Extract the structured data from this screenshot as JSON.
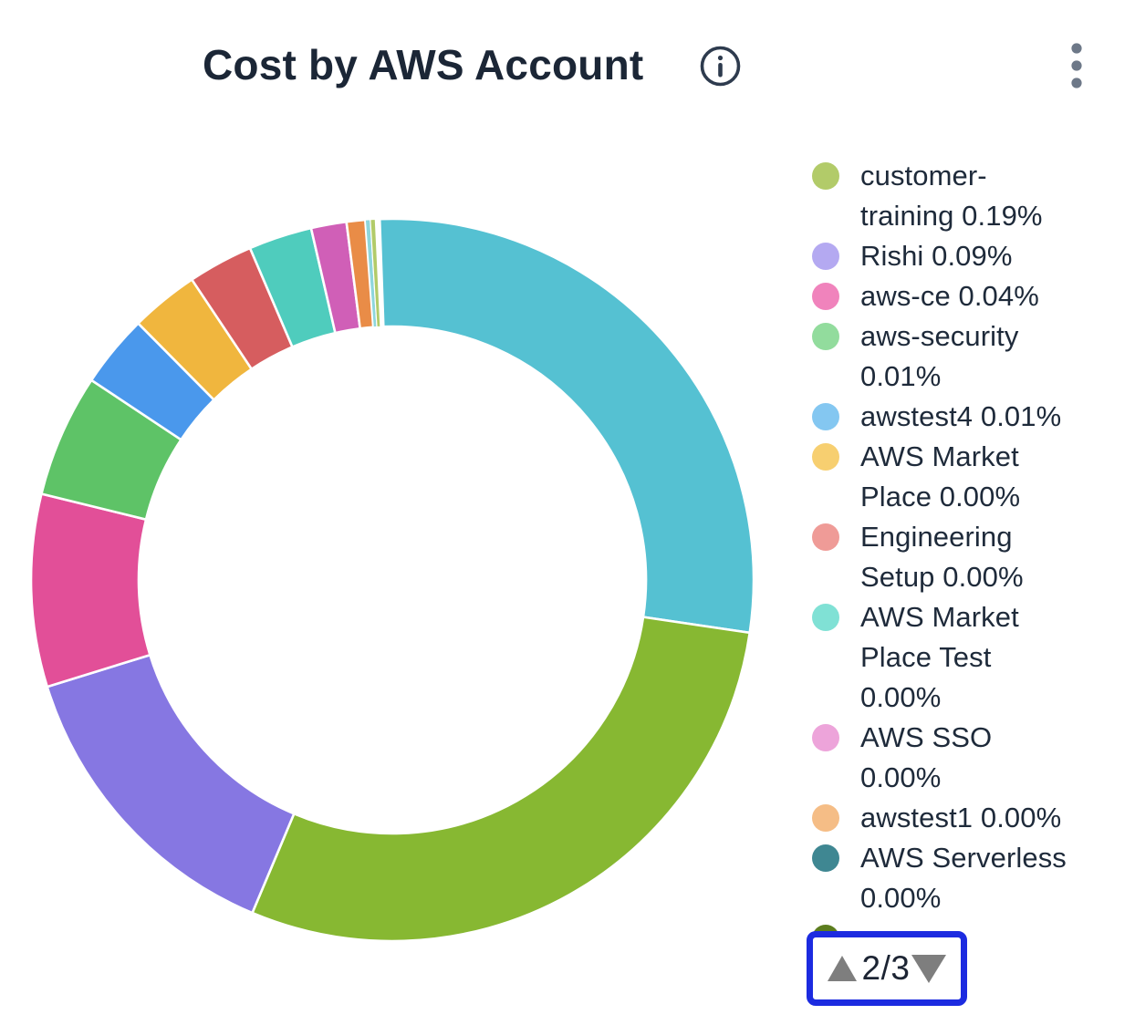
{
  "header": {
    "title": "Cost by AWS Account",
    "info_icon": "info-circle",
    "menu_icon": "kebab-vertical-dots"
  },
  "colors": {
    "title_text": "#1b2636",
    "legend_text": "#1e2a3a",
    "icon_gray": "#6d7888",
    "pager_border_blue": "#1c2be0",
    "pager_triangle_gray": "#7e7e7e",
    "pager_text": "#1c2433"
  },
  "chart_data": {
    "type": "pie",
    "subtype": "donut",
    "title": "Cost by AWS Account",
    "legend_position": "right",
    "start_angle_deg": -2,
    "slices": [
      {
        "name": "slice-1-teal",
        "color": "#55c1d2",
        "deg": 100.4,
        "est_share_pct": 27.9
      },
      {
        "name": "slice-2-olive",
        "color": "#87b832",
        "deg": 104.4,
        "est_share_pct": 29.0
      },
      {
        "name": "slice-3-purple",
        "color": "#8677e2",
        "deg": 50.0,
        "est_share_pct": 13.9
      },
      {
        "name": "slice-4-pink",
        "color": "#e24f98",
        "deg": 31.0,
        "est_share_pct": 8.6
      },
      {
        "name": "slice-5-green",
        "color": "#5ec367",
        "deg": 19.8,
        "est_share_pct": 5.5
      },
      {
        "name": "slice-6-blue",
        "color": "#4a98ec",
        "deg": 11.7,
        "est_share_pct": 3.3
      },
      {
        "name": "slice-7-yellow",
        "color": "#f0b63e",
        "deg": 11.0,
        "est_share_pct": 3.1
      },
      {
        "name": "slice-8-red",
        "color": "#d65d5f",
        "deg": 10.5,
        "est_share_pct": 2.9
      },
      {
        "name": "slice-9-mint",
        "color": "#4fccbd",
        "deg": 10.2,
        "est_share_pct": 2.8
      },
      {
        "name": "slice-10-orchid",
        "color": "#d05fb7",
        "deg": 5.7,
        "est_share_pct": 1.6
      },
      {
        "name": "slice-11-orange",
        "color": "#e98c47",
        "deg": 3.0,
        "est_share_pct": 0.8
      },
      {
        "name": "sliver-light-teal",
        "color": "#8ed6dc",
        "deg": 0.8
      },
      {
        "name": "sliver-light-olive",
        "color": "#b2cb69",
        "deg": 0.8
      }
    ],
    "legend_items": [
      {
        "label": "customer-training",
        "pct": "0.19%",
        "color": "#b2cb69",
        "lines": [
          "customer-",
          "training 0.19%"
        ]
      },
      {
        "label": "Rishi",
        "pct": "0.09%",
        "color": "#b4a9f1",
        "lines": [
          "Rishi 0.09%"
        ]
      },
      {
        "label": "aws-ce",
        "pct": "0.04%",
        "color": "#f083bc",
        "lines": [
          "aws-ce 0.04%"
        ]
      },
      {
        "label": "aws-security",
        "pct": "0.01%",
        "color": "#92dc9d",
        "lines": [
          "aws-security",
          "0.01%"
        ]
      },
      {
        "label": "awstest4",
        "pct": "0.01%",
        "color": "#84c7f1",
        "lines": [
          "awstest4 0.01%"
        ]
      },
      {
        "label": "AWS Market Place",
        "pct": "0.00%",
        "color": "#f7cf70",
        "lines": [
          "AWS Market",
          "Place 0.00%"
        ]
      },
      {
        "label": "Engineering Setup",
        "pct": "0.00%",
        "color": "#ef9b97",
        "lines": [
          "Engineering",
          "Setup 0.00%"
        ]
      },
      {
        "label": "AWS Market Place Test",
        "pct": "0.00%",
        "color": "#80e1d5",
        "lines": [
          "AWS Market",
          "Place Test",
          "0.00%"
        ]
      },
      {
        "label": "AWS SSO",
        "pct": "0.00%",
        "color": "#eda4da",
        "lines": [
          "AWS SSO",
          "0.00%"
        ]
      },
      {
        "label": "awstest1",
        "pct": "0.00%",
        "color": "#f5bd86",
        "lines": [
          "awstest1 0.00%"
        ]
      },
      {
        "label": "AWS Serverless",
        "pct": "0.00%",
        "color": "#3f8792",
        "lines": [
          "AWS Serverless",
          "0.00%"
        ]
      },
      {
        "label": "",
        "pct": "",
        "color": "#5c7d1e",
        "lines": [],
        "partially_hidden": true
      }
    ]
  },
  "pagination": {
    "current_page": "2",
    "total_pages": "3",
    "display": "2/3",
    "up_icon": "triangle-up",
    "down_icon": "triangle-down"
  }
}
